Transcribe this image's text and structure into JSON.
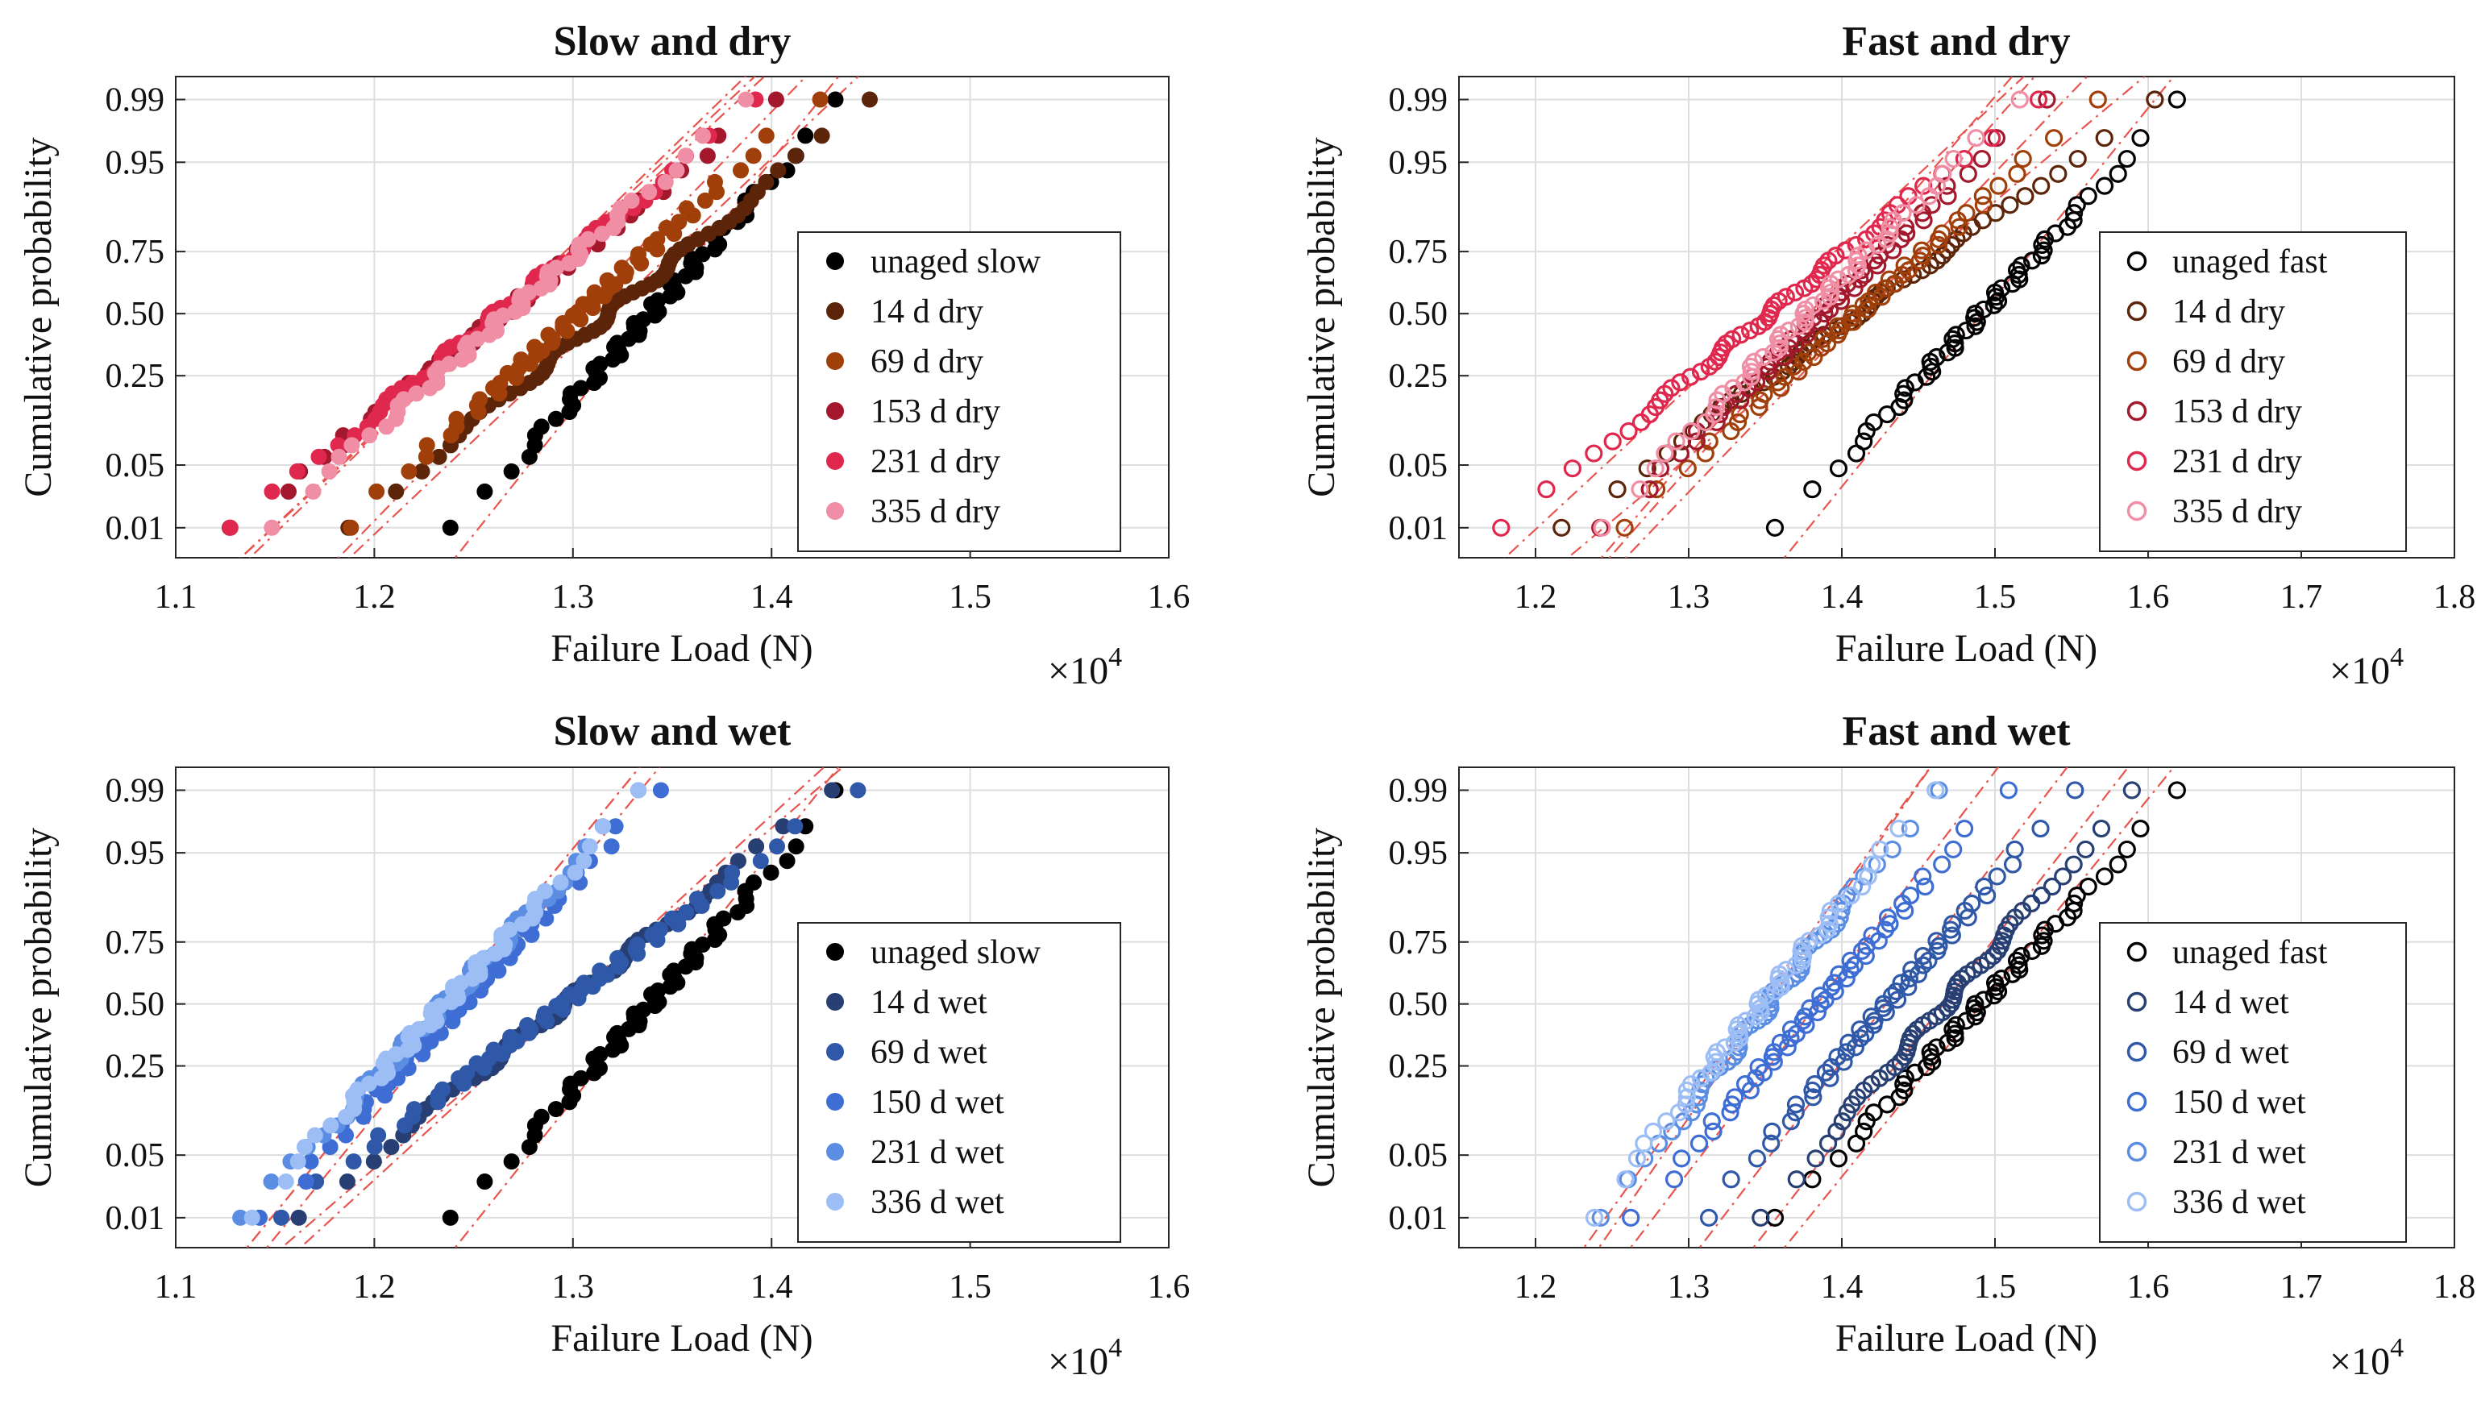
{
  "figure": {
    "mult_base": "×10",
    "mult_exp": "4"
  },
  "colors": {
    "unaged": "#000000",
    "dry": [
      "#5c2408",
      "#a13f0a",
      "#a3182c",
      "#e0284e",
      "#f08ea5"
    ],
    "wet": [
      "#273f73",
      "#2f58a8",
      "#3e6ed4",
      "#5b8ee3",
      "#9dbef5"
    ],
    "fit_line": "#e8544e"
  },
  "chart_data": [
    {
      "id": "slow-dry",
      "type": "scatter",
      "title": "Slow and dry",
      "xlabel": "Failure Load (N)",
      "ylabel": "Cumulative probability",
      "xlim": [
        1.1,
        1.6
      ],
      "xticks": [
        "1.1",
        "1.2",
        "1.3",
        "1.4",
        "1.5",
        "1.6"
      ],
      "yticks": [
        "0.01",
        "0.05",
        "0.25",
        "0.50",
        "0.75",
        "0.95",
        "0.99"
      ],
      "ytick_values": [
        0.01,
        0.05,
        0.25,
        0.5,
        0.75,
        0.95,
        0.99
      ],
      "filled": true,
      "grid": true,
      "series": [
        {
          "name": "unaged slow",
          "color": "#000000",
          "range": [
            1.242,
            1.436
          ],
          "n": 60,
          "fit": [
            1.235,
            1.44
          ]
        },
        {
          "name": "14 d dry",
          "color": "#5c2408",
          "range": [
            1.185,
            1.451
          ],
          "n": 60,
          "fit": [
            1.18,
            1.452
          ]
        },
        {
          "name": "69 d dry",
          "color": "#a13f0a",
          "range": [
            1.185,
            1.421
          ],
          "n": 60,
          "fit": [
            1.175,
            1.425
          ]
        },
        {
          "name": "153 d dry",
          "color": "#a3182c",
          "range": [
            1.13,
            1.4
          ],
          "n": 60,
          "fit": [
            1.125,
            1.405
          ]
        },
        {
          "name": "231 d dry",
          "color": "#e0284e",
          "range": [
            1.13,
            1.395
          ],
          "n": 60,
          "fit": [
            1.125,
            1.4
          ]
        },
        {
          "name": "335 d dry",
          "color": "#f08ea5",
          "range": [
            1.145,
            1.39
          ],
          "n": 60,
          "fit": [
            1.13,
            1.395
          ]
        }
      ]
    },
    {
      "id": "fast-dry",
      "type": "scatter",
      "title": "Fast and dry",
      "xlabel": "Failure Load (N)",
      "ylabel": "Cumulative probability",
      "xlim": [
        1.15,
        1.8
      ],
      "xticks": [
        "1.2",
        "1.3",
        "1.4",
        "1.5",
        "1.6",
        "1.7",
        "1.8"
      ],
      "yticks": [
        "0.01",
        "0.05",
        "0.25",
        "0.50",
        "0.75",
        "0.95",
        "0.99"
      ],
      "ytick_values": [
        0.01,
        0.05,
        0.25,
        0.5,
        0.75,
        0.95,
        0.99
      ],
      "filled": false,
      "grid": true,
      "series": [
        {
          "name": "unaged fast",
          "color": "#000000",
          "range": [
            1.36,
            1.622
          ],
          "n": 55,
          "fit": [
            1.355,
            1.625
          ]
        },
        {
          "name": "14 d dry",
          "color": "#5c2408",
          "range": [
            1.215,
            1.605
          ],
          "n": 55,
          "fit": [
            1.21,
            1.61
          ]
        },
        {
          "name": "69 d dry",
          "color": "#a13f0a",
          "range": [
            1.255,
            1.565
          ],
          "n": 55,
          "fit": [
            1.25,
            1.57
          ]
        },
        {
          "name": "153 d dry",
          "color": "#a3182c",
          "range": [
            1.245,
            1.53
          ],
          "n": 55,
          "fit": [
            1.24,
            1.535
          ]
        },
        {
          "name": "231 d dry",
          "color": "#e0284e",
          "range": [
            1.18,
            1.525
          ],
          "n": 55,
          "fit": [
            1.17,
            1.53
          ]
        },
        {
          "name": "335 d dry",
          "color": "#f08ea5",
          "range": [
            1.24,
            1.515
          ],
          "n": 55,
          "fit": [
            1.235,
            1.52
          ]
        }
      ]
    },
    {
      "id": "slow-wet",
      "type": "scatter",
      "title": "Slow and wet",
      "xlabel": "Failure Load (N)",
      "ylabel": "Cumulative probability",
      "xlim": [
        1.1,
        1.6
      ],
      "xticks": [
        "1.1",
        "1.2",
        "1.3",
        "1.4",
        "1.5",
        "1.6"
      ],
      "yticks": [
        "0.01",
        "0.05",
        "0.25",
        "0.50",
        "0.75",
        "0.95",
        "0.99"
      ],
      "ytick_values": [
        0.01,
        0.05,
        0.25,
        0.5,
        0.75,
        0.95,
        0.99
      ],
      "filled": true,
      "grid": true,
      "series": [
        {
          "name": "unaged slow",
          "color": "#000000",
          "range": [
            1.242,
            1.436
          ],
          "n": 60,
          "fit": [
            1.235,
            1.44
          ]
        },
        {
          "name": "14 d wet",
          "color": "#273f73",
          "range": [
            1.16,
            1.432
          ],
          "n": 60,
          "fit": [
            1.155,
            1.435
          ]
        },
        {
          "name": "69 d wet",
          "color": "#2f58a8",
          "range": [
            1.15,
            1.44
          ],
          "n": 60,
          "fit": [
            1.145,
            1.445
          ]
        },
        {
          "name": "150 d wet",
          "color": "#3e6ed4",
          "range": [
            1.145,
            1.342
          ],
          "n": 60,
          "fit": [
            1.14,
            1.35
          ]
        },
        {
          "name": "231 d wet",
          "color": "#5b8ee3",
          "range": [
            1.135,
            1.336
          ],
          "n": 60,
          "fit": [
            1.13,
            1.34
          ]
        },
        {
          "name": "336 d wet",
          "color": "#9dbef5",
          "range": [
            1.135,
            1.336
          ],
          "n": 60,
          "fit": [
            1.13,
            1.34
          ]
        }
      ]
    },
    {
      "id": "fast-wet",
      "type": "scatter",
      "title": "Fast and wet",
      "xlabel": "Failure Load (N)",
      "ylabel": "Cumulative probability",
      "xlim": [
        1.15,
        1.8
      ],
      "xticks": [
        "1.2",
        "1.3",
        "1.4",
        "1.5",
        "1.6",
        "1.7",
        "1.8"
      ],
      "yticks": [
        "0.01",
        "0.05",
        "0.25",
        "0.50",
        "0.75",
        "0.95",
        "0.99"
      ],
      "ytick_values": [
        0.01,
        0.05,
        0.25,
        0.5,
        0.75,
        0.95,
        0.99
      ],
      "filled": false,
      "grid": true,
      "series": [
        {
          "name": "unaged fast",
          "color": "#000000",
          "range": [
            1.36,
            1.622
          ],
          "n": 55,
          "fit": [
            1.355,
            1.625
          ]
        },
        {
          "name": "14 d wet",
          "color": "#273f73",
          "range": [
            1.345,
            1.59
          ],
          "n": 55,
          "fit": [
            1.335,
            1.595
          ]
        },
        {
          "name": "69 d wet",
          "color": "#2f58a8",
          "range": [
            1.31,
            1.55
          ],
          "n": 55,
          "fit": [
            1.3,
            1.555
          ]
        },
        {
          "name": "150 d wet",
          "color": "#3e6ed4",
          "range": [
            1.265,
            1.505
          ],
          "n": 55,
          "fit": [
            1.255,
            1.51
          ]
        },
        {
          "name": "231 d wet",
          "color": "#5b8ee3",
          "range": [
            1.245,
            1.46
          ],
          "n": 55,
          "fit": [
            1.235,
            1.465
          ]
        },
        {
          "name": "336 d wet",
          "color": "#9dbef5",
          "range": [
            1.235,
            1.46
          ],
          "n": 55,
          "fit": [
            1.225,
            1.465
          ]
        }
      ]
    }
  ]
}
